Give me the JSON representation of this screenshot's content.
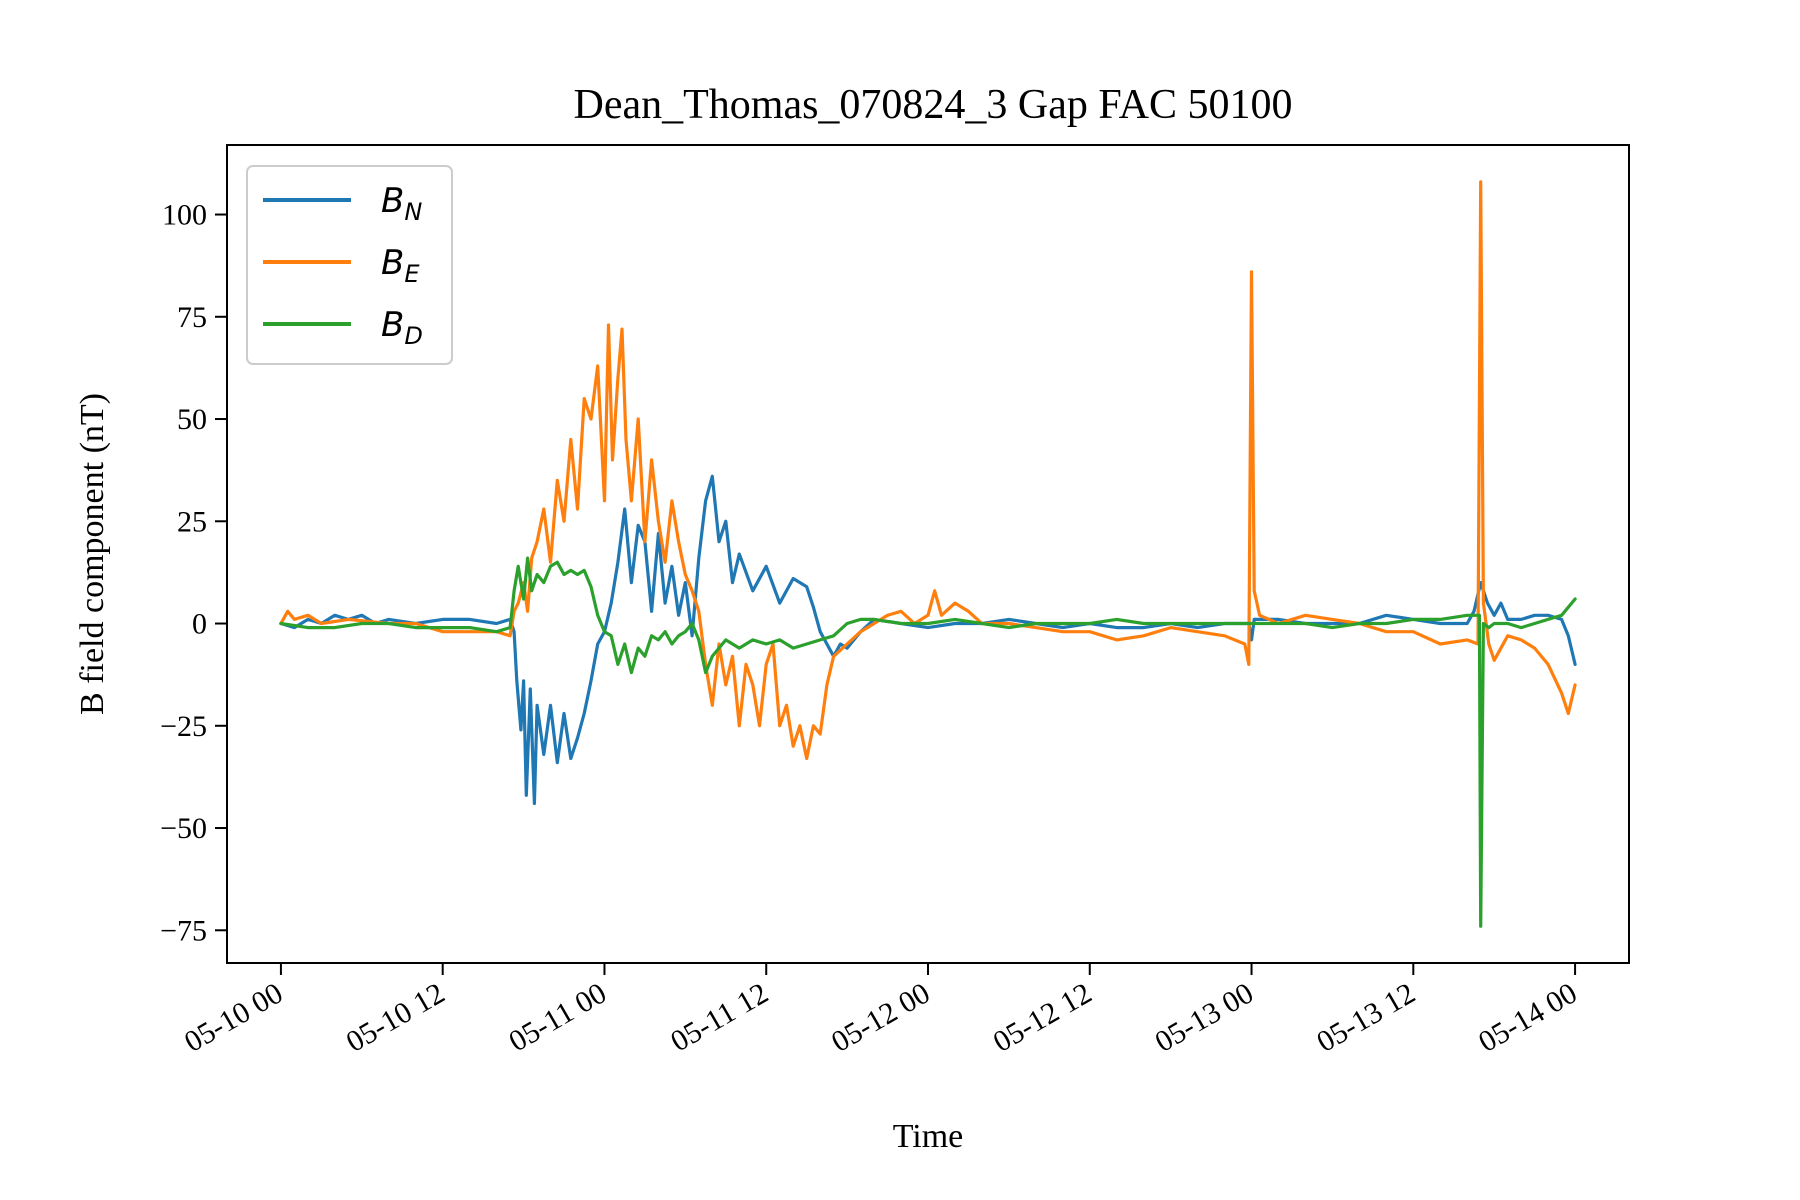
{
  "chart_data": {
    "type": "line",
    "title": "Dean_Thomas_070824_3 Gap FAC 50100",
    "xlabel": "Time",
    "ylabel": "B field component (nT)",
    "x_unit": "hours from 05-10 00",
    "xlim": [
      -4,
      100
    ],
    "ylim": [
      -83,
      117
    ],
    "x_ticks": [
      {
        "value": 0,
        "label": "05-10 00"
      },
      {
        "value": 12,
        "label": "05-10 12"
      },
      {
        "value": 24,
        "label": "05-11 00"
      },
      {
        "value": 36,
        "label": "05-11 12"
      },
      {
        "value": 48,
        "label": "05-12 00"
      },
      {
        "value": 60,
        "label": "05-12 12"
      },
      {
        "value": 72,
        "label": "05-13 00"
      },
      {
        "value": 84,
        "label": "05-13 12"
      },
      {
        "value": 96,
        "label": "05-14 00"
      }
    ],
    "y_ticks": [
      {
        "value": 100,
        "label": "100"
      },
      {
        "value": 75,
        "label": "75"
      },
      {
        "value": 50,
        "label": "50"
      },
      {
        "value": 25,
        "label": "25"
      },
      {
        "value": 0,
        "label": "0"
      },
      {
        "value": -25,
        "label": "−25"
      },
      {
        "value": -50,
        "label": "−50"
      },
      {
        "value": -75,
        "label": "−75"
      }
    ],
    "grid": false,
    "legend_position": "top-left",
    "series": [
      {
        "name": "B",
        "subscript": "N",
        "color": "#1f77b4",
        "points": [
          [
            0,
            0
          ],
          [
            1,
            -1
          ],
          [
            2,
            1
          ],
          [
            3,
            0
          ],
          [
            4,
            2
          ],
          [
            5,
            1
          ],
          [
            6,
            2
          ],
          [
            7,
            0
          ],
          [
            8,
            1
          ],
          [
            10,
            0
          ],
          [
            12,
            1
          ],
          [
            14,
            1
          ],
          [
            16,
            0
          ],
          [
            17,
            1
          ],
          [
            17.3,
            -2
          ],
          [
            17.5,
            -14
          ],
          [
            17.8,
            -26
          ],
          [
            18,
            -14
          ],
          [
            18.2,
            -42
          ],
          [
            18.5,
            -16
          ],
          [
            18.8,
            -44
          ],
          [
            19,
            -20
          ],
          [
            19.5,
            -32
          ],
          [
            20,
            -20
          ],
          [
            20.5,
            -34
          ],
          [
            21,
            -22
          ],
          [
            21.5,
            -33
          ],
          [
            22,
            -28
          ],
          [
            22.5,
            -22
          ],
          [
            23,
            -14
          ],
          [
            23.5,
            -5
          ],
          [
            24,
            -2
          ],
          [
            24.5,
            5
          ],
          [
            25,
            15
          ],
          [
            25.5,
            28
          ],
          [
            26,
            10
          ],
          [
            26.5,
            24
          ],
          [
            27,
            20
          ],
          [
            27.5,
            3
          ],
          [
            28,
            22
          ],
          [
            28.5,
            5
          ],
          [
            29,
            14
          ],
          [
            29.5,
            2
          ],
          [
            30,
            10
          ],
          [
            30.5,
            -3
          ],
          [
            31,
            16
          ],
          [
            31.5,
            30
          ],
          [
            32,
            36
          ],
          [
            32.5,
            20
          ],
          [
            33,
            25
          ],
          [
            33.5,
            10
          ],
          [
            34,
            17
          ],
          [
            35,
            8
          ],
          [
            36,
            14
          ],
          [
            37,
            5
          ],
          [
            38,
            11
          ],
          [
            39,
            9
          ],
          [
            39.5,
            4
          ],
          [
            40,
            -2
          ],
          [
            40.5,
            -5
          ],
          [
            41,
            -8
          ],
          [
            41.5,
            -5
          ],
          [
            42,
            -6
          ],
          [
            43,
            -2
          ],
          [
            44,
            1
          ],
          [
            46,
            0
          ],
          [
            48,
            -1
          ],
          [
            50,
            0
          ],
          [
            52,
            0
          ],
          [
            54,
            1
          ],
          [
            56,
            0
          ],
          [
            58,
            -1
          ],
          [
            60,
            0
          ],
          [
            62,
            -1
          ],
          [
            64,
            -1
          ],
          [
            66,
            0
          ],
          [
            68,
            -1
          ],
          [
            70,
            0
          ],
          [
            71.8,
            0
          ],
          [
            72,
            -4
          ],
          [
            72.2,
            1
          ],
          [
            74,
            1
          ],
          [
            76,
            0
          ],
          [
            78,
            0
          ],
          [
            80,
            0
          ],
          [
            82,
            2
          ],
          [
            84,
            1
          ],
          [
            86,
            0
          ],
          [
            88,
            0
          ],
          [
            88.5,
            3
          ],
          [
            89,
            10
          ],
          [
            89.5,
            5
          ],
          [
            90,
            2
          ],
          [
            90.5,
            5
          ],
          [
            91,
            1
          ],
          [
            92,
            1
          ],
          [
            93,
            2
          ],
          [
            94,
            2
          ],
          [
            95,
            1
          ],
          [
            95.5,
            -3
          ],
          [
            96,
            -10
          ]
        ]
      },
      {
        "name": "B",
        "subscript": "E",
        "color": "#ff7f0e",
        "points": [
          [
            0,
            0
          ],
          [
            0.5,
            3
          ],
          [
            1,
            1
          ],
          [
            2,
            2
          ],
          [
            3,
            0
          ],
          [
            5,
            1
          ],
          [
            8,
            0
          ],
          [
            10,
            0
          ],
          [
            12,
            -2
          ],
          [
            14,
            -2
          ],
          [
            16,
            -2
          ],
          [
            17,
            -3
          ],
          [
            17.3,
            3
          ],
          [
            17.6,
            5
          ],
          [
            18,
            10
          ],
          [
            18.3,
            3
          ],
          [
            18.6,
            16
          ],
          [
            19,
            20
          ],
          [
            19.5,
            28
          ],
          [
            20,
            15
          ],
          [
            20.5,
            35
          ],
          [
            21,
            25
          ],
          [
            21.5,
            45
          ],
          [
            22,
            28
          ],
          [
            22.5,
            55
          ],
          [
            23,
            50
          ],
          [
            23.5,
            63
          ],
          [
            24,
            30
          ],
          [
            24.3,
            73
          ],
          [
            24.6,
            40
          ],
          [
            25,
            60
          ],
          [
            25.3,
            72
          ],
          [
            25.6,
            45
          ],
          [
            26,
            30
          ],
          [
            26.5,
            50
          ],
          [
            27,
            20
          ],
          [
            27.5,
            40
          ],
          [
            28,
            25
          ],
          [
            28.5,
            15
          ],
          [
            29,
            30
          ],
          [
            29.5,
            20
          ],
          [
            30,
            12
          ],
          [
            30.5,
            8
          ],
          [
            31,
            3
          ],
          [
            31.5,
            -10
          ],
          [
            32,
            -20
          ],
          [
            32.5,
            -5
          ],
          [
            33,
            -15
          ],
          [
            33.5,
            -8
          ],
          [
            34,
            -25
          ],
          [
            34.5,
            -10
          ],
          [
            35,
            -15
          ],
          [
            35.5,
            -25
          ],
          [
            36,
            -10
          ],
          [
            36.5,
            -5
          ],
          [
            37,
            -25
          ],
          [
            37.5,
            -20
          ],
          [
            38,
            -30
          ],
          [
            38.5,
            -25
          ],
          [
            39,
            -33
          ],
          [
            39.5,
            -25
          ],
          [
            40,
            -27
          ],
          [
            40.5,
            -15
          ],
          [
            41,
            -8
          ],
          [
            42,
            -5
          ],
          [
            43,
            -2
          ],
          [
            44,
            0
          ],
          [
            45,
            2
          ],
          [
            46,
            3
          ],
          [
            47,
            0
          ],
          [
            48,
            2
          ],
          [
            48.5,
            8
          ],
          [
            49,
            2
          ],
          [
            50,
            5
          ],
          [
            51,
            3
          ],
          [
            52,
            0
          ],
          [
            54,
            0
          ],
          [
            56,
            -1
          ],
          [
            58,
            -2
          ],
          [
            60,
            -2
          ],
          [
            62,
            -4
          ],
          [
            64,
            -3
          ],
          [
            66,
            -1
          ],
          [
            68,
            -2
          ],
          [
            70,
            -3
          ],
          [
            71.5,
            -5
          ],
          [
            71.8,
            -10
          ],
          [
            72,
            86
          ],
          [
            72.2,
            8
          ],
          [
            72.6,
            2
          ],
          [
            74,
            0
          ],
          [
            76,
            2
          ],
          [
            78,
            1
          ],
          [
            80,
            0
          ],
          [
            82,
            -2
          ],
          [
            84,
            -2
          ],
          [
            86,
            -5
          ],
          [
            88,
            -4
          ],
          [
            88.8,
            -5
          ],
          [
            89,
            108
          ],
          [
            89.2,
            5
          ],
          [
            89.6,
            -5
          ],
          [
            90,
            -9
          ],
          [
            91,
            -3
          ],
          [
            92,
            -4
          ],
          [
            93,
            -6
          ],
          [
            94,
            -10
          ],
          [
            95,
            -17
          ],
          [
            95.5,
            -22
          ],
          [
            96,
            -15
          ]
        ]
      },
      {
        "name": "B",
        "subscript": "D",
        "color": "#2ca02c",
        "points": [
          [
            0,
            0
          ],
          [
            2,
            -1
          ],
          [
            4,
            -1
          ],
          [
            6,
            0
          ],
          [
            8,
            0
          ],
          [
            10,
            -1
          ],
          [
            12,
            -1
          ],
          [
            14,
            -1
          ],
          [
            16,
            -2
          ],
          [
            17,
            -1
          ],
          [
            17.3,
            8
          ],
          [
            17.6,
            14
          ],
          [
            18,
            6
          ],
          [
            18.3,
            16
          ],
          [
            18.6,
            8
          ],
          [
            19,
            12
          ],
          [
            19.5,
            10
          ],
          [
            20,
            14
          ],
          [
            20.5,
            15
          ],
          [
            21,
            12
          ],
          [
            21.5,
            13
          ],
          [
            22,
            12
          ],
          [
            22.5,
            13
          ],
          [
            23,
            9
          ],
          [
            23.5,
            2
          ],
          [
            24,
            -2
          ],
          [
            24.5,
            -3
          ],
          [
            25,
            -10
          ],
          [
            25.5,
            -5
          ],
          [
            26,
            -12
          ],
          [
            26.5,
            -6
          ],
          [
            27,
            -8
          ],
          [
            27.5,
            -3
          ],
          [
            28,
            -4
          ],
          [
            28.5,
            -2
          ],
          [
            29,
            -5
          ],
          [
            29.5,
            -3
          ],
          [
            30,
            -2
          ],
          [
            30.5,
            0
          ],
          [
            31,
            -4
          ],
          [
            31.5,
            -12
          ],
          [
            32,
            -8
          ],
          [
            32.5,
            -6
          ],
          [
            33,
            -4
          ],
          [
            33.5,
            -5
          ],
          [
            34,
            -6
          ],
          [
            35,
            -4
          ],
          [
            36,
            -5
          ],
          [
            37,
            -4
          ],
          [
            38,
            -6
          ],
          [
            39,
            -5
          ],
          [
            40,
            -4
          ],
          [
            41,
            -3
          ],
          [
            42,
            0
          ],
          [
            43,
            1
          ],
          [
            44,
            1
          ],
          [
            46,
            0
          ],
          [
            48,
            0
          ],
          [
            50,
            1
          ],
          [
            52,
            0
          ],
          [
            54,
            -1
          ],
          [
            56,
            0
          ],
          [
            58,
            0
          ],
          [
            60,
            0
          ],
          [
            62,
            1
          ],
          [
            64,
            0
          ],
          [
            66,
            0
          ],
          [
            68,
            0
          ],
          [
            70,
            0
          ],
          [
            72,
            0
          ],
          [
            74,
            0
          ],
          [
            76,
            0
          ],
          [
            78,
            -1
          ],
          [
            80,
            0
          ],
          [
            82,
            0
          ],
          [
            84,
            1
          ],
          [
            86,
            1
          ],
          [
            88,
            2
          ],
          [
            88.9,
            2
          ],
          [
            89,
            -74
          ],
          [
            89.2,
            0
          ],
          [
            89.6,
            -1
          ],
          [
            90,
            0
          ],
          [
            91,
            0
          ],
          [
            92,
            -1
          ],
          [
            93,
            0
          ],
          [
            94,
            1
          ],
          [
            95,
            2
          ],
          [
            96,
            6
          ]
        ]
      }
    ]
  }
}
